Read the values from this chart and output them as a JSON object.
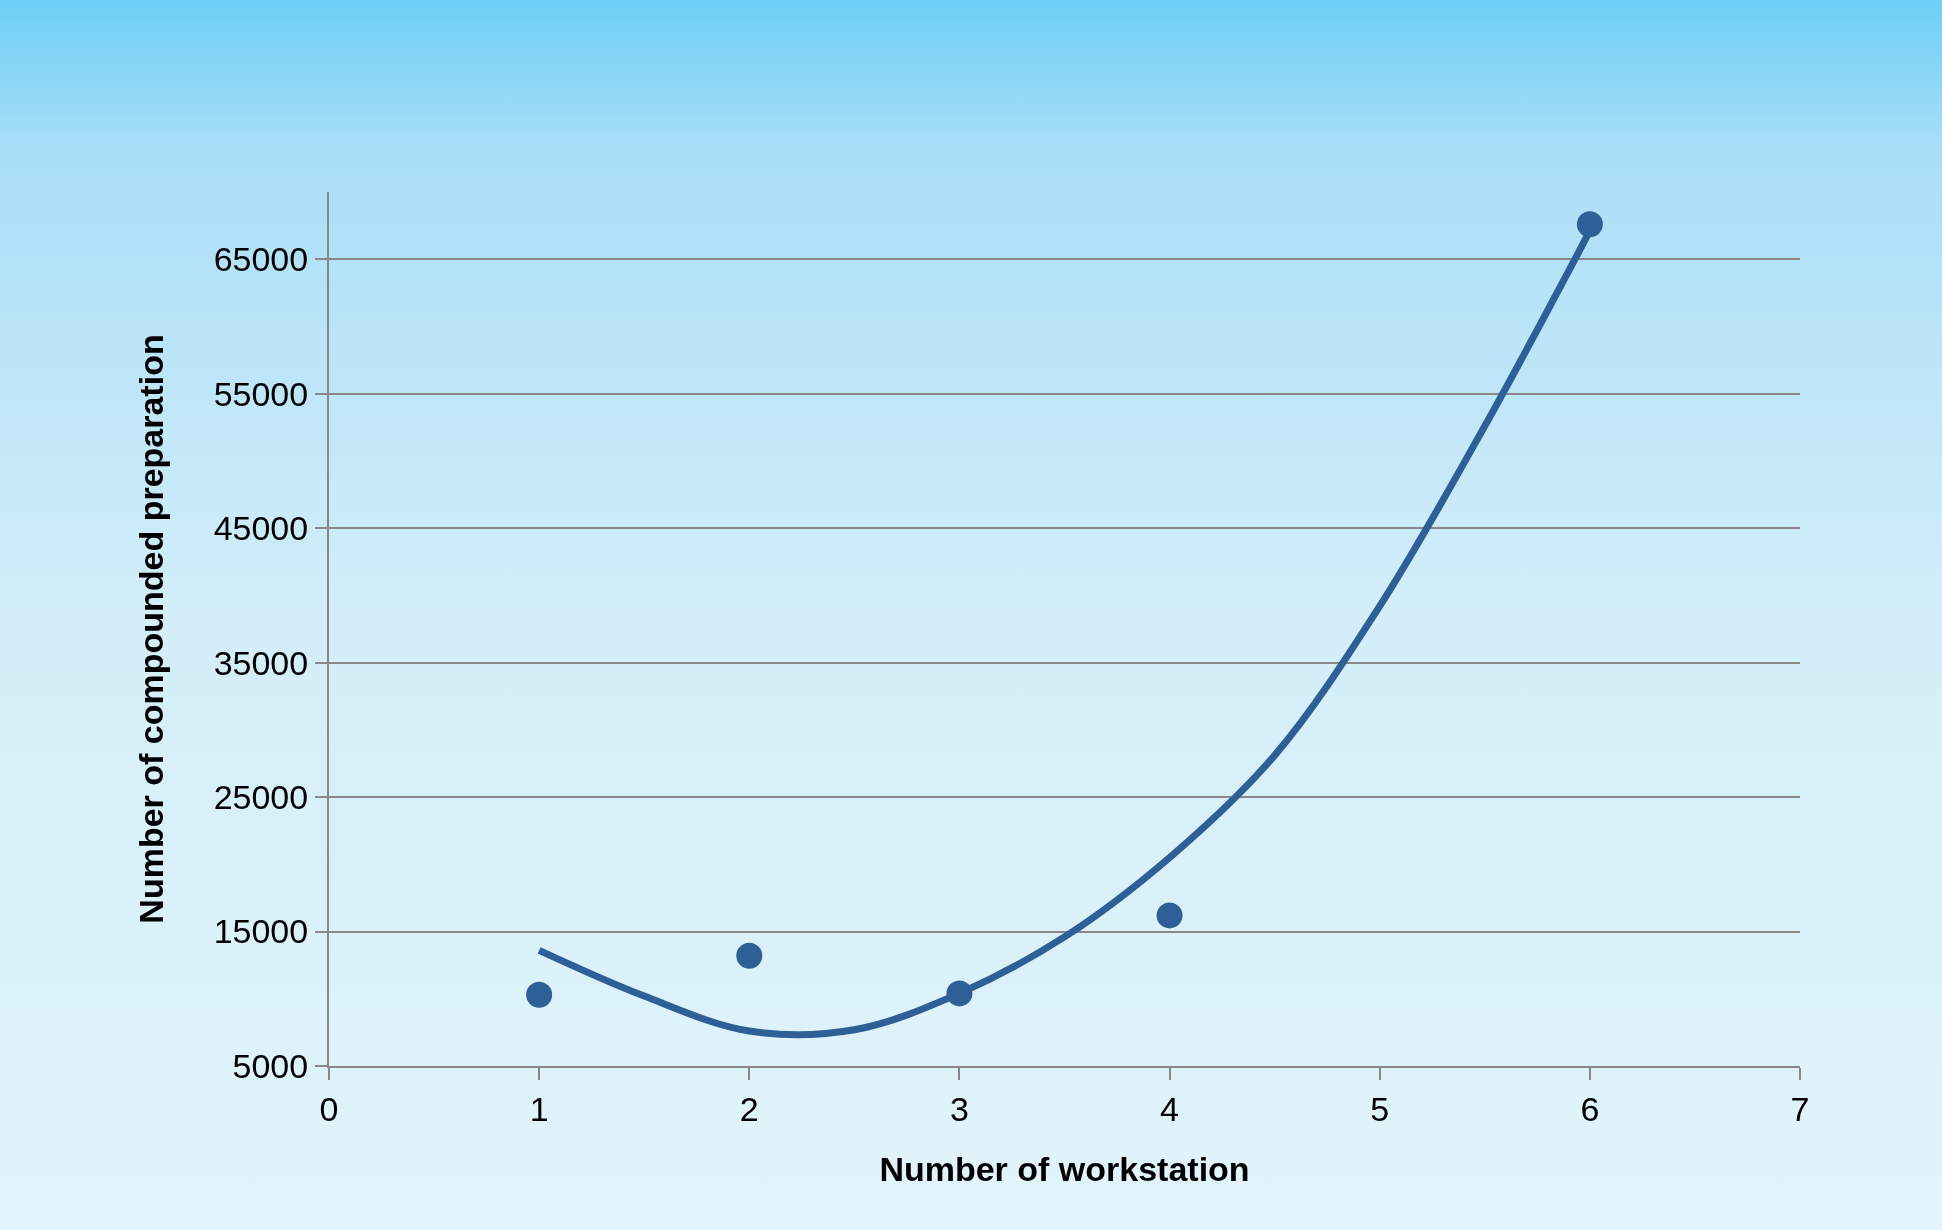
{
  "chart_data": {
    "type": "scatter",
    "xlabel": "Number of workstation",
    "ylabel": "Number of compounded preparation",
    "xlim": [
      0,
      7
    ],
    "xticks": [
      0,
      1,
      2,
      3,
      4,
      5,
      6,
      7
    ],
    "ylim": [
      5000,
      70000
    ],
    "yticks": [
      5000,
      15000,
      25000,
      35000,
      45000,
      55000,
      65000
    ],
    "grid": "y",
    "series": [
      {
        "marker": "circle",
        "color": "#2e5f96",
        "x": [
          1,
          2,
          3,
          4,
          6
        ],
        "values": [
          10300,
          13200,
          10400,
          16200,
          67600
        ]
      },
      {
        "type": "line",
        "marker": "none",
        "color": "#2e5f96",
        "x": [
          1,
          1.5,
          2,
          2.5,
          3,
          3.5,
          4,
          4.5,
          5,
          5.5,
          6
        ],
        "values": [
          13600,
          10200,
          7600,
          7700,
          10400,
          14600,
          20500,
          28100,
          39200,
          52600,
          67100
        ]
      }
    ]
  }
}
